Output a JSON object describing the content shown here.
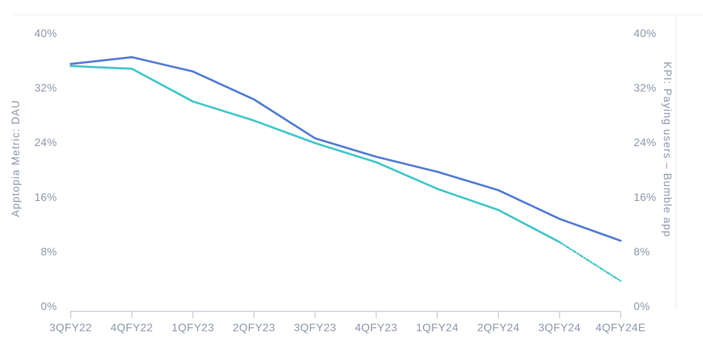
{
  "chart_data": {
    "type": "line",
    "title": "",
    "legend": "none",
    "grid": "off",
    "categories": [
      "3QFY22",
      "4QFY22",
      "1QFY23",
      "2QFY23",
      "3QFY23",
      "4QFY23",
      "1QFY24",
      "2QFY24",
      "3QFY24",
      "4QFY24E"
    ],
    "series": [
      {
        "name": "Apptopia Metric: DAU",
        "axis": "left",
        "color": "#4e79d4",
        "line_style": "solid",
        "values": [
          35.5,
          36.5,
          34.4,
          30.3,
          24.6,
          21.9,
          19.7,
          17.0,
          12.8,
          9.6
        ]
      },
      {
        "name": "KPI: Paying users – Bumble app",
        "axis": "right",
        "color": "#3ec5c8",
        "line_style": "solid-then-dashed",
        "dashed_from_index": 8,
        "dashed_from_category": "3QFY24",
        "values": [
          35.2,
          34.8,
          30.0,
          27.2,
          23.9,
          21.1,
          17.2,
          14.1,
          9.4,
          3.7
        ]
      }
    ],
    "left_axis": {
      "title": "Apptopia Metric: DAU",
      "tick_labels": [
        "40%",
        "32%",
        "24%",
        "16%",
        "8%",
        "0%"
      ],
      "range": [
        0,
        40
      ]
    },
    "right_axis": {
      "title": "KPI: Paying users – Bumble app",
      "tick_labels": [
        "40%",
        "32%",
        "24%",
        "16%",
        "8%",
        "0%"
      ],
      "range": [
        0,
        40
      ]
    }
  },
  "colors": {
    "dau_line": "#4e79d4",
    "paying_users_line": "#3ec5c8",
    "tick_text": "#8b95a9",
    "axis_line": "#b9c1d0",
    "container_border": "#e9ebf0",
    "container_border_top": "#f3f4f7",
    "background": "#ffffff"
  }
}
